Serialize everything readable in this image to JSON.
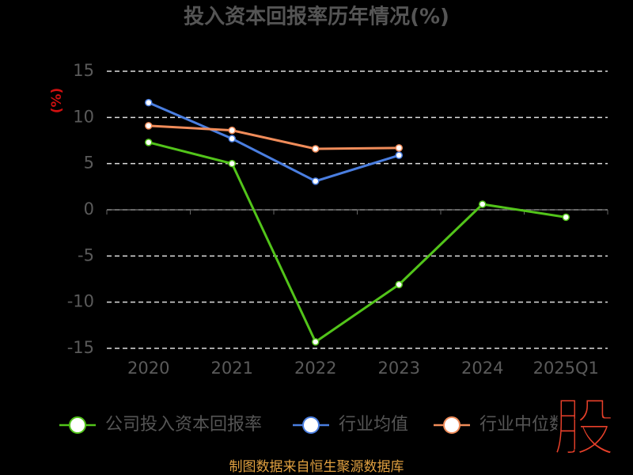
{
  "chart_data": {
    "type": "line",
    "title": "投入资本回报率历年情况(%)",
    "y_label": "(%)",
    "categories": [
      "2020",
      "2021",
      "2022",
      "2023",
      "2024",
      "2025Q1"
    ],
    "series": [
      {
        "name": "公司投入资本回报率",
        "color": "#52c41a",
        "values": [
          7.3,
          5.0,
          -14.3,
          -8.1,
          0.6,
          -0.8
        ]
      },
      {
        "name": "行业均值",
        "color": "#4a7ee0",
        "values": [
          11.6,
          7.7,
          3.1,
          5.9,
          null,
          null
        ]
      },
      {
        "name": "行业中位数",
        "color": "#f08c5a",
        "values": [
          9.1,
          8.6,
          6.6,
          6.7,
          null,
          null
        ]
      }
    ],
    "ylim": [
      -15,
      15
    ],
    "yticks": [
      -15,
      -10,
      -5,
      0,
      5,
      10,
      15
    ],
    "grid": true,
    "source": "制图数据来自恒生聚源数据库",
    "logo": "股"
  }
}
